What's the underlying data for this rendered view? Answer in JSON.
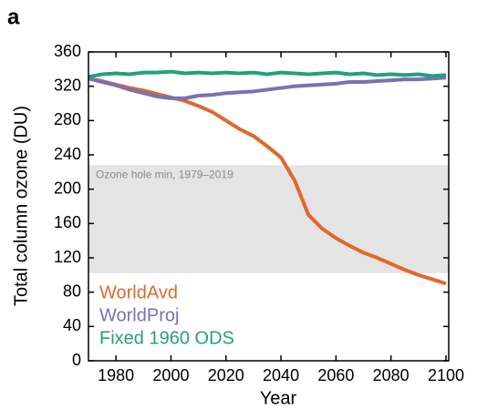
{
  "panel_label": "a",
  "chart_data": {
    "type": "line",
    "xlabel": "Year",
    "ylabel": "Total column ozone (DU)",
    "x": [
      1970,
      1975,
      1980,
      1985,
      1990,
      1995,
      2000,
      2005,
      2010,
      2015,
      2020,
      2025,
      2030,
      2035,
      2040,
      2045,
      2050,
      2055,
      2060,
      2065,
      2070,
      2075,
      2080,
      2085,
      2090,
      2095,
      2100
    ],
    "series": [
      {
        "name": "WorldAvd",
        "color": "#e0682a",
        "values": [
          329,
          326,
          322,
          318,
          315,
          311,
          307,
          303,
          297,
          290,
          280,
          270,
          262,
          250,
          237,
          210,
          170,
          154,
          143,
          134,
          126,
          120,
          113,
          106,
          100,
          95,
          90
        ]
      },
      {
        "name": "WorldProj",
        "color": "#7a70b5",
        "values": [
          329,
          325,
          321,
          316,
          312,
          308,
          306,
          306,
          309,
          310,
          312,
          313,
          314,
          316,
          318,
          320,
          321,
          322,
          323,
          325,
          325,
          326,
          327,
          328,
          328,
          329,
          330
        ]
      },
      {
        "name": "Fixed 1960 ODS",
        "color": "#23a07a",
        "values": [
          331,
          334,
          335,
          334,
          336,
          336,
          337,
          335,
          336,
          335,
          336,
          335,
          336,
          334,
          336,
          335,
          334,
          335,
          336,
          334,
          335,
          333,
          334,
          333,
          334,
          332,
          333
        ]
      }
    ],
    "band": {
      "label": "Ozone hole min, 1979–2019",
      "range": [
        102,
        228
      ],
      "color": "#e4e4e4"
    },
    "xlim": [
      1970,
      2101
    ],
    "ylim": [
      0,
      360
    ],
    "xticks": [
      1980,
      2000,
      2020,
      2040,
      2060,
      2080,
      2100
    ],
    "yticks": [
      0,
      40,
      80,
      120,
      160,
      200,
      240,
      280,
      320,
      360
    ],
    "legend": "lower left"
  }
}
